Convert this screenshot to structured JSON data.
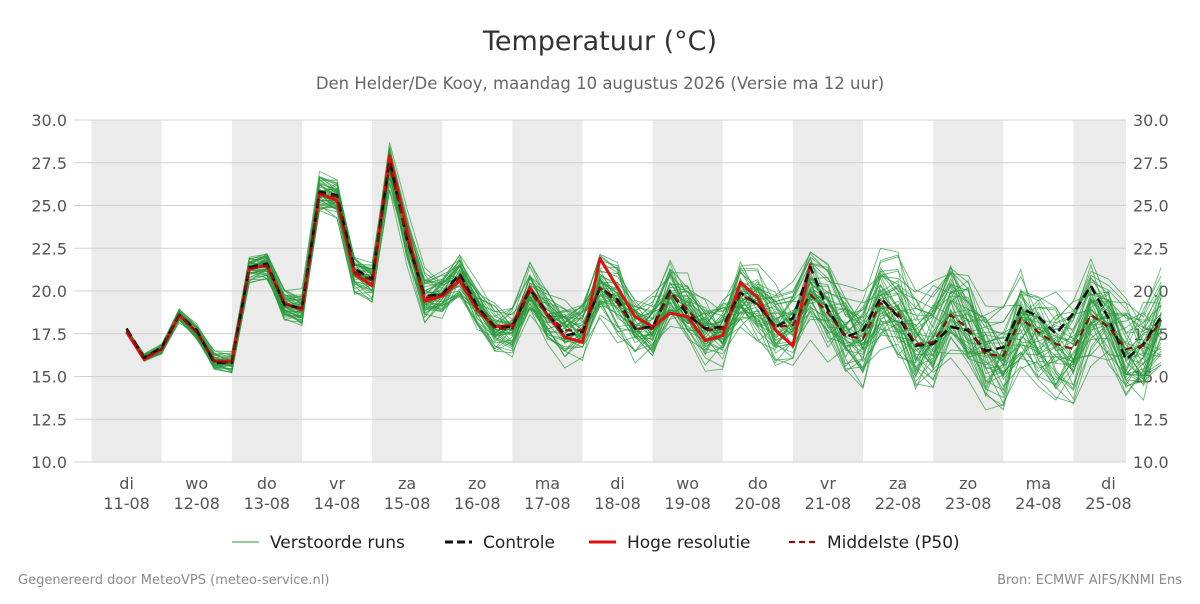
{
  "chart_data": {
    "type": "line",
    "title": "Temperatuur (°C)",
    "subtitle": "Den Helder/De Kooy, maandag 10 augustus 2026 (Versie ma 12 uur)",
    "ylim": [
      10,
      30
    ],
    "yticks": [
      "10.0",
      "12.5",
      "15.0",
      "17.5",
      "20.0",
      "22.5",
      "25.0",
      "27.5",
      "30.0"
    ],
    "xlim": [
      -0.75,
      14.25
    ],
    "xticks": [
      {
        "day": "di",
        "date": "11-08"
      },
      {
        "day": "wo",
        "date": "12-08"
      },
      {
        "day": "do",
        "date": "13-08"
      },
      {
        "day": "vr",
        "date": "14-08"
      },
      {
        "day": "za",
        "date": "15-08"
      },
      {
        "day": "zo",
        "date": "16-08"
      },
      {
        "day": "ma",
        "date": "17-08"
      },
      {
        "day": "di",
        "date": "18-08"
      },
      {
        "day": "wo",
        "date": "19-08"
      },
      {
        "day": "do",
        "date": "20-08"
      },
      {
        "day": "vr",
        "date": "21-08"
      },
      {
        "day": "za",
        "date": "22-08"
      },
      {
        "day": "zo",
        "date": "23-08"
      },
      {
        "day": "ma",
        "date": "24-08"
      },
      {
        "day": "di",
        "date": "25-08"
      }
    ],
    "grid": true,
    "legend_position": "bottom",
    "time_step_days": 0.25,
    "series": [
      {
        "name": "Controle",
        "color": "#111111",
        "dash": "dashed",
        "values": [
          17.8,
          16.1,
          16.7,
          18.6,
          17.7,
          15.8,
          15.8,
          21.4,
          21.6,
          19.2,
          19.0,
          25.8,
          25.6,
          21.3,
          20.7,
          27.6,
          23.0,
          19.7,
          19.8,
          21.0,
          19.1,
          17.9,
          17.9,
          20.1,
          18.7,
          17.4,
          17.6,
          20.2,
          19.5,
          17.8,
          17.9,
          20.0,
          18.6,
          17.8,
          17.9,
          19.9,
          19.2,
          17.9,
          18.4,
          21.4,
          18.9,
          17.3,
          17.7,
          19.6,
          18.5,
          16.8,
          16.9,
          17.9,
          17.7,
          16.5,
          16.7,
          19.0,
          18.5,
          17.5,
          18.7,
          20.3,
          18.4,
          16.0,
          16.9,
          18.5
        ]
      },
      {
        "name": "Hoge resolutie",
        "color": "#dd1111",
        "dash": "solid",
        "values": [
          17.6,
          16.0,
          16.6,
          18.6,
          17.6,
          15.9,
          15.9,
          21.3,
          21.5,
          19.3,
          18.9,
          25.7,
          25.3,
          21.0,
          20.3,
          27.9,
          23.5,
          19.4,
          19.7,
          20.6,
          18.9,
          17.9,
          18.0,
          20.2,
          18.6,
          17.3,
          17.0,
          21.9,
          20.2,
          18.5,
          17.9,
          18.7,
          18.5,
          17.1,
          17.4,
          20.5,
          19.6,
          17.7,
          16.8,
          21.6
        ]
      },
      {
        "name": "Middelste (P50)",
        "color": "#8b0f0f",
        "dash": "dashed",
        "values": [
          17.7,
          16.1,
          16.6,
          18.6,
          17.6,
          15.9,
          15.8,
          21.3,
          21.5,
          19.2,
          19.0,
          25.7,
          25.5,
          21.1,
          20.6,
          27.4,
          23.1,
          19.6,
          19.8,
          20.8,
          19.0,
          17.8,
          17.8,
          20.0,
          18.6,
          17.7,
          17.7,
          20.2,
          19.3,
          17.8,
          17.8,
          19.9,
          18.9,
          17.7,
          17.8,
          19.8,
          19.2,
          17.9,
          18.0,
          19.8,
          18.7,
          17.4,
          17.2,
          19.3,
          18.7,
          16.9,
          17.0,
          18.6,
          17.8,
          16.3,
          16.2,
          18.4,
          17.6,
          16.9,
          16.6,
          18.6,
          17.9,
          16.6,
          16.8,
          18.3
        ]
      }
    ],
    "ensemble": {
      "name": "Verstoorde runs",
      "color": "#2a9a3c",
      "members": 50,
      "note_values": "50 ensemble members; individual values approximated from visible spread"
    }
  },
  "legend": {
    "items": [
      {
        "label": "Verstoorde runs",
        "color": "#2a9a3c"
      },
      {
        "label": "Controle",
        "color": "#111111"
      },
      {
        "label": "Hoge resolutie",
        "color": "#dd1111"
      },
      {
        "label": "Middelste (P50)",
        "color": "#8b0f0f"
      }
    ]
  },
  "footer": {
    "left": "Gegenereerd door MeteoVPS (meteo-service.nl)",
    "right": "Bron: ECMWF AIFS/KNMI Ens"
  },
  "colors": {
    "night_band": "#ebebeb",
    "grid": "#d0d0d0",
    "axis_text": "#555555",
    "title": "#333333"
  }
}
